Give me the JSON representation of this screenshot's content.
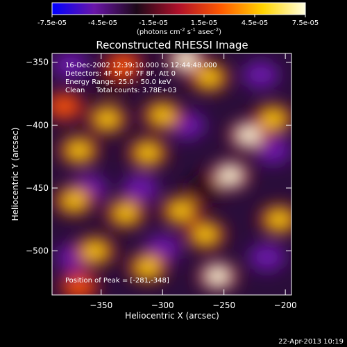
{
  "chart_data": {
    "type": "heatmap",
    "title": "Reconstructed RHESSI Image",
    "xlabel": "Heliocentric X (arcsec)",
    "ylabel": "Heliocentric Y (arcsec)",
    "xlim": [
      -390,
      -195
    ],
    "ylim": [
      -535,
      -343
    ],
    "x_ticks": [
      -350,
      -300,
      -250,
      -200
    ],
    "y_ticks": [
      -350,
      -400,
      -450,
      -500
    ],
    "colorbar": {
      "ticks": [
        "-7.5e-05",
        "-4.5e-05",
        "-1.5e-05",
        "1.5e-05",
        "4.5e-05",
        "7.5e-05"
      ],
      "range": [
        -7.5e-05,
        7.5e-05
      ],
      "units_prefix": "(photons cm",
      "units_exp1": "-2",
      "units_mid": " s",
      "units_exp2": "-1",
      "units_mid2": " asec",
      "units_exp3": "-2",
      "units_suffix": ")",
      "colors": [
        "#0000ff",
        "#6a16a8",
        "#1c0818",
        "#b0102a",
        "#ff5a00",
        "#ffd400",
        "#ffffe0"
      ]
    },
    "annotations": [
      "16-Dec-2002 12:39:10.000 to 12:44:48.000",
      "Detectors: 4F 5F 6F 7F 8F, Att 0",
      "Energy Range: 25.0 - 50.0 keV",
      "Clean     Total counts: 3.78E+03"
    ],
    "peak_label": "Position of Peak = [-281,-348]",
    "peak": [
      -281,
      -348
    ],
    "hotspots": [
      {
        "x": -332,
        "y": -352,
        "v": 3e-05
      },
      {
        "x": -281,
        "y": -348,
        "v": 7.5e-05
      },
      {
        "x": -262,
        "y": -362,
        "v": 4.2e-05
      },
      {
        "x": -345,
        "y": -395,
        "v": 5.8e-05
      },
      {
        "x": -300,
        "y": -392,
        "v": 4.6e-05
      },
      {
        "x": -368,
        "y": -420,
        "v": 5e-05
      },
      {
        "x": -312,
        "y": -422,
        "v": 6.2e-05
      },
      {
        "x": -230,
        "y": -408,
        "v": 7.3e-05
      },
      {
        "x": -210,
        "y": -395,
        "v": 4.5e-05
      },
      {
        "x": -245,
        "y": -440,
        "v": 6.8e-05
      },
      {
        "x": -372,
        "y": -460,
        "v": 4.8e-05
      },
      {
        "x": -330,
        "y": -470,
        "v": 5.6e-05
      },
      {
        "x": -285,
        "y": -468,
        "v": 4.4e-05
      },
      {
        "x": -265,
        "y": -487,
        "v": 4.8e-05
      },
      {
        "x": -355,
        "y": -500,
        "v": 3.8e-05
      },
      {
        "x": -312,
        "y": -513,
        "v": 6e-05
      },
      {
        "x": -255,
        "y": -520,
        "v": 6.6e-05
      },
      {
        "x": -368,
        "y": -528,
        "v": 3.5e-05
      },
      {
        "x": -205,
        "y": -475,
        "v": 4e-05
      },
      {
        "x": -380,
        "y": -385,
        "v": 3.2e-05
      }
    ],
    "lows": [
      {
        "x": -360,
        "y": -450,
        "v": -4.5e-05
      },
      {
        "x": -318,
        "y": -450,
        "v": -5.5e-05
      },
      {
        "x": -372,
        "y": -505,
        "v": -4e-05
      },
      {
        "x": -210,
        "y": -420,
        "v": -6e-05
      },
      {
        "x": -215,
        "y": -505,
        "v": -5.5e-05
      },
      {
        "x": -280,
        "y": -400,
        "v": -5e-05
      },
      {
        "x": -300,
        "y": -498,
        "v": -4.8e-05
      },
      {
        "x": -340,
        "y": -365,
        "v": -3.5e-05
      },
      {
        "x": -375,
        "y": -352,
        "v": -4.2e-05
      },
      {
        "x": -220,
        "y": -360,
        "v": -3.8e-05
      },
      {
        "x": -265,
        "y": -450,
        "v": -3e-05
      }
    ],
    "grid": false
  },
  "footer": {
    "timestamp": "22-Apr-2013 10:19"
  }
}
